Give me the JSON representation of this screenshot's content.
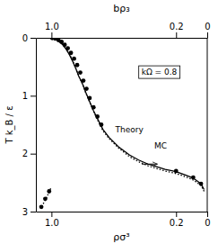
{
  "chart_data": {
    "type": "line",
    "xlabel": "ρσ³",
    "x2label": "bρ₃",
    "ylabel": "T k_B / ε",
    "xlim": [
      1.1,
      0.0
    ],
    "x2lim": [
      1.1,
      0.0
    ],
    "ylim": [
      3.0,
      0.0
    ],
    "xticks": [
      0,
      0.2,
      {
        "value": 1.0,
        "label": "1.0"
      }
    ],
    "x2ticks": [
      0,
      0.2,
      {
        "value": 1.0,
        "label": "1.0"
      }
    ],
    "yticks": [
      0,
      1,
      2,
      3
    ],
    "series": [
      {
        "type": "line",
        "line_style": "solid",
        "color": "black",
        "x": [
          0.02,
          0.04,
          0.07,
          0.1,
          0.14,
          0.18,
          0.22,
          0.27,
          0.32,
          0.38,
          0.44,
          0.5,
          0.57,
          0.63,
          0.67,
          0.7,
          0.73,
          0.755,
          0.78,
          0.8,
          0.825,
          0.845,
          0.865,
          0.885,
          0.905,
          0.925,
          0.945,
          0.965,
          0.985
        ],
        "values": [
          2.62,
          2.52,
          2.46,
          2.41,
          2.37,
          2.33,
          2.3,
          2.27,
          2.23,
          2.18,
          2.11,
          2.02,
          1.88,
          1.72,
          1.58,
          1.42,
          1.26,
          1.1,
          0.94,
          0.8,
          0.66,
          0.52,
          0.4,
          0.29,
          0.2,
          0.13,
          0.08,
          0.04,
          0.01
        ]
      },
      {
        "type": "line",
        "line_style": "dotted",
        "color": "black",
        "x": [
          0.02,
          0.04,
          0.07,
          0.1,
          0.14,
          0.18,
          0.22,
          0.27,
          0.32,
          0.38,
          0.44,
          0.5,
          0.57,
          0.63,
          0.67,
          0.7,
          0.73,
          0.755,
          0.78,
          0.8,
          0.825,
          0.845,
          0.865,
          0.885,
          0.905,
          0.925,
          0.945,
          0.965,
          0.985
        ],
        "values": [
          2.65,
          2.55,
          2.49,
          2.44,
          2.4,
          2.36,
          2.33,
          2.3,
          2.26,
          2.21,
          2.14,
          2.05,
          1.9,
          1.74,
          1.6,
          1.44,
          1.27,
          1.11,
          0.95,
          0.8,
          0.66,
          0.52,
          0.39,
          0.28,
          0.19,
          0.12,
          0.06,
          0.02,
          0.005
        ]
      },
      {
        "type": "line",
        "line_style": "dotted",
        "color": "black",
        "x": [
          1.005,
          1.03,
          1.06
        ],
        "values": [
          2.6,
          2.75,
          2.9
        ]
      },
      {
        "type": "scatter",
        "marker": "circle",
        "color": "black",
        "x": [
          0.04,
          0.09,
          0.2
        ],
        "values": [
          2.52,
          2.41,
          2.3
        ]
      },
      {
        "type": "scatter",
        "marker": "circle",
        "color": "black",
        "x": [
          0.68,
          0.705,
          0.73,
          0.755,
          0.775,
          0.795,
          0.815,
          0.835,
          0.855,
          0.875,
          0.895,
          0.915,
          0.935,
          0.955,
          0.975,
          0.995,
          1.015,
          1.04,
          1.065
        ],
        "values": [
          1.5,
          1.36,
          1.2,
          1.04,
          0.88,
          0.74,
          0.6,
          0.47,
          0.36,
          0.26,
          0.18,
          0.12,
          0.07,
          0.04,
          0.015,
          0.005,
          2.65,
          2.78,
          2.92
        ]
      }
    ],
    "annotations": [
      {
        "text": "MC",
        "x": 0.3,
        "y": 1.88
      },
      {
        "text": "Theory",
        "x": 0.5,
        "y": 1.6
      },
      {
        "text": "kΩ = 0.8"
      }
    ],
    "arrows": [
      {
        "x_start": 0.42,
        "x_end": 0.32,
        "y": 2.18
      }
    ]
  }
}
